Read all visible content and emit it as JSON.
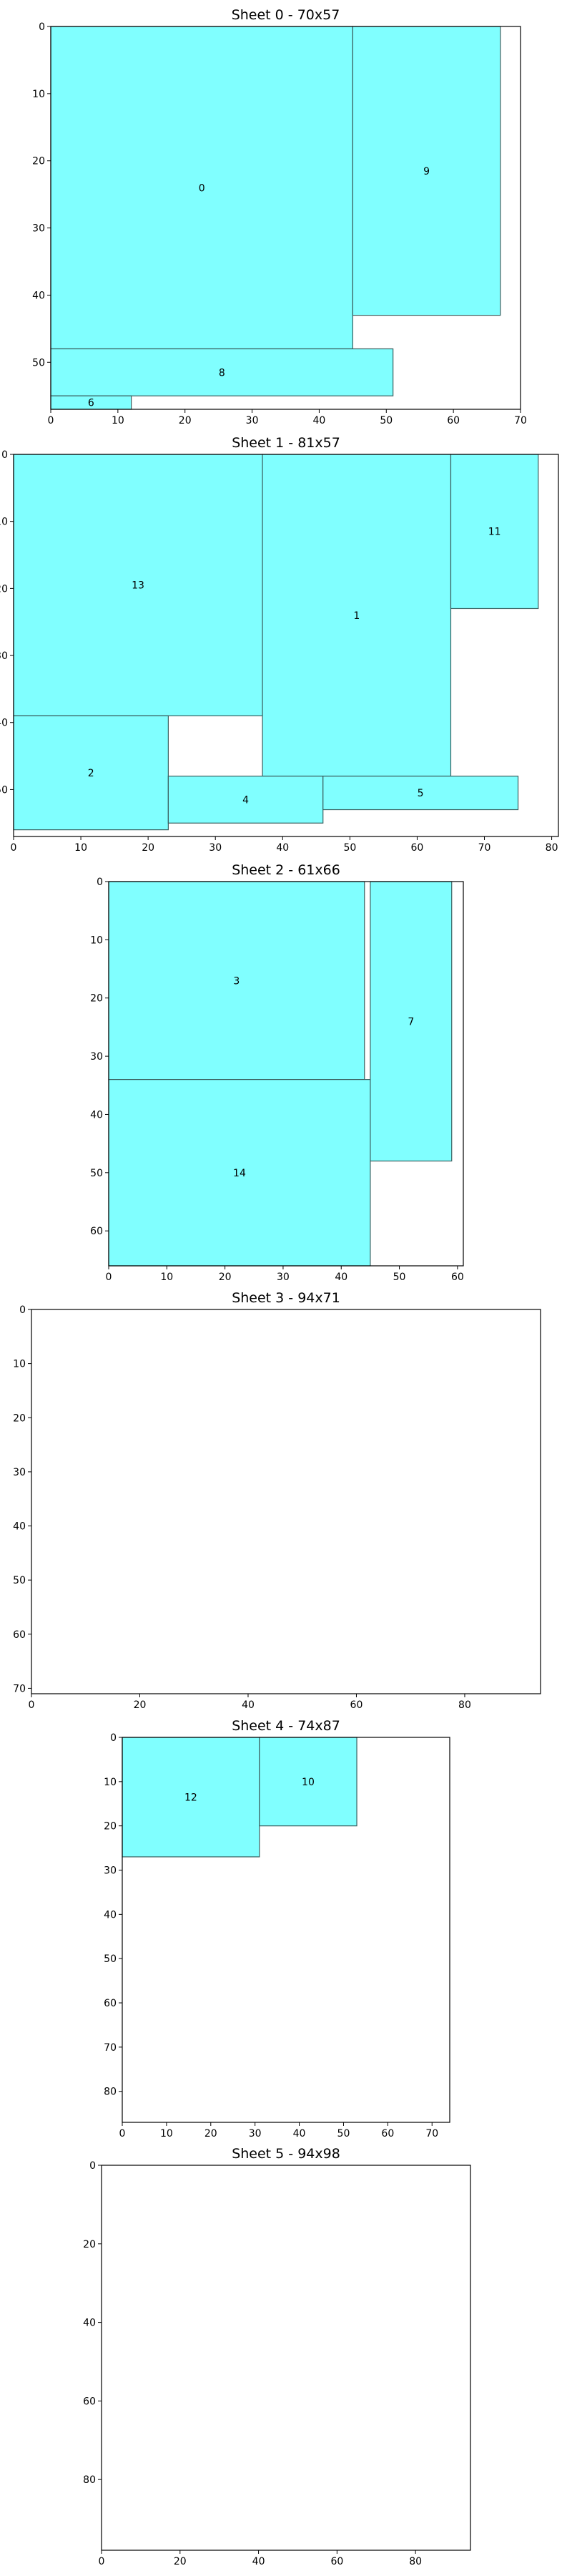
{
  "chart_data": [
    {
      "type": "rectangles",
      "title": "Sheet 0 - 70x57",
      "xlim": [
        0,
        70
      ],
      "ylim": [
        0,
        57
      ],
      "xticks": [
        0,
        10,
        20,
        30,
        40,
        50,
        60,
        70
      ],
      "yticks": [
        0,
        10,
        20,
        30,
        40,
        50
      ],
      "pieces": [
        {
          "label": "0",
          "x": 0,
          "y": 0,
          "w": 45,
          "h": 48
        },
        {
          "label": "9",
          "x": 45,
          "y": 0,
          "w": 22,
          "h": 43
        },
        {
          "label": "8",
          "x": 0,
          "y": 48,
          "w": 51,
          "h": 7
        },
        {
          "label": "6",
          "x": 0,
          "y": 55,
          "w": 12,
          "h": 2
        }
      ]
    },
    {
      "type": "rectangles",
      "title": "Sheet 1 - 81x57",
      "xlim": [
        0,
        81
      ],
      "ylim": [
        0,
        57
      ],
      "xticks": [
        0,
        10,
        20,
        30,
        40,
        50,
        60,
        70,
        80
      ],
      "yticks": [
        0,
        10,
        20,
        30,
        40,
        50
      ],
      "pieces": [
        {
          "label": "13",
          "x": 0,
          "y": 0,
          "w": 37,
          "h": 39
        },
        {
          "label": "1",
          "x": 37,
          "y": 0,
          "w": 28,
          "h": 48
        },
        {
          "label": "11",
          "x": 65,
          "y": 0,
          "w": 13,
          "h": 23
        },
        {
          "label": "2",
          "x": 0,
          "y": 39,
          "w": 23,
          "h": 17
        },
        {
          "label": "4",
          "x": 23,
          "y": 48,
          "w": 23,
          "h": 7
        },
        {
          "label": "5",
          "x": 46,
          "y": 48,
          "w": 29,
          "h": 5
        }
      ]
    },
    {
      "type": "rectangles",
      "title": "Sheet 2 - 61x66",
      "xlim": [
        0,
        61
      ],
      "ylim": [
        0,
        66
      ],
      "xticks": [
        0,
        10,
        20,
        30,
        40,
        50,
        60
      ],
      "yticks": [
        0,
        10,
        20,
        30,
        40,
        50,
        60
      ],
      "pieces": [
        {
          "label": "3",
          "x": 0,
          "y": 0,
          "w": 44,
          "h": 34
        },
        {
          "label": "7",
          "x": 45,
          "y": 0,
          "w": 14,
          "h": 48
        },
        {
          "label": "14",
          "x": 0,
          "y": 34,
          "w": 45,
          "h": 32
        }
      ]
    },
    {
      "type": "rectangles",
      "title": "Sheet 3 - 94x71",
      "xlim": [
        0,
        94
      ],
      "ylim": [
        0,
        71
      ],
      "xticks": [
        0,
        20,
        40,
        60,
        80
      ],
      "yticks": [
        0,
        10,
        20,
        30,
        40,
        50,
        60,
        70
      ],
      "pieces": []
    },
    {
      "type": "rectangles",
      "title": "Sheet 4 - 74x87",
      "xlim": [
        0,
        74
      ],
      "ylim": [
        0,
        87
      ],
      "xticks": [
        0,
        10,
        20,
        30,
        40,
        50,
        60,
        70
      ],
      "yticks": [
        0,
        10,
        20,
        30,
        40,
        50,
        60,
        70,
        80
      ],
      "pieces": [
        {
          "label": "12",
          "x": 0,
          "y": 0,
          "w": 31,
          "h": 27
        },
        {
          "label": "10",
          "x": 31,
          "y": 0,
          "w": 22,
          "h": 20
        }
      ]
    },
    {
      "type": "rectangles",
      "title": "Sheet 5 - 94x98",
      "xlim": [
        0,
        94
      ],
      "ylim": [
        0,
        98
      ],
      "xticks": [
        0,
        20,
        40,
        60,
        80
      ],
      "yticks": [
        0,
        20,
        40,
        60,
        80
      ],
      "pieces": []
    }
  ],
  "colors": {
    "piece_fill": "#80FFFF",
    "piece_edge": "#3A5F5F",
    "frame": "#000000",
    "text": "#000000"
  }
}
